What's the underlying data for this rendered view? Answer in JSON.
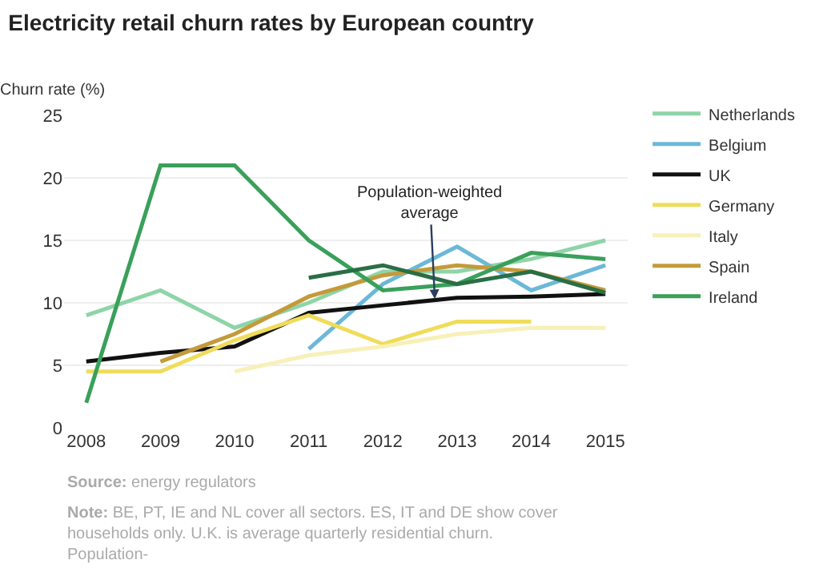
{
  "chart_data": {
    "type": "line",
    "title": "Electricity retail churn rates by European country",
    "ylabel": "Churn rate (%)",
    "x": [
      2008,
      2009,
      2010,
      2011,
      2012,
      2013,
      2014,
      2015
    ],
    "xlim": [
      2007.7,
      2015.3
    ],
    "xticks": [
      2008,
      2009,
      2010,
      2011,
      2012,
      2013,
      2014,
      2015
    ],
    "ylim": [
      0,
      25
    ],
    "yticks": [
      0,
      5,
      10,
      15,
      20,
      25
    ],
    "grid": "y",
    "legend": "right",
    "series": [
      {
        "name": "Netherlands",
        "color": "#8fd4a8",
        "values": [
          9,
          11,
          8,
          10,
          12.5,
          12.5,
          13.5,
          15
        ]
      },
      {
        "name": "Belgium",
        "color": "#6bb8d8",
        "values": [
          null,
          null,
          null,
          6.3,
          11.5,
          14.5,
          11,
          13
        ]
      },
      {
        "name": "UK",
        "color": "#111111",
        "values": [
          5.3,
          6,
          6.5,
          9.2,
          9.8,
          10.4,
          10.5,
          10.7
        ]
      },
      {
        "name": "Germany",
        "color": "#f0dc5a",
        "values": [
          4.5,
          4.5,
          7,
          9,
          6.7,
          8.5,
          8.5,
          null
        ]
      },
      {
        "name": "Italy",
        "color": "#f7f0b8",
        "values": [
          null,
          null,
          4.5,
          5.8,
          6.5,
          7.5,
          8,
          8
        ]
      },
      {
        "name": "Spain",
        "color": "#c49a3a",
        "values": [
          null,
          5.3,
          7.5,
          10.5,
          12.2,
          13,
          12.5,
          11
        ]
      },
      {
        "name": "Ireland",
        "color": "#3aa05a",
        "values": [
          2,
          21,
          21,
          15,
          11,
          11.5,
          14,
          13.5
        ]
      },
      {
        "color": "#2a6e45",
        "values": [
          null,
          null,
          null,
          12,
          13,
          11.5,
          12.5,
          10.8
        ]
      }
    ],
    "annotations": [
      {
        "text": "Population-weighted average",
        "x": 2012.7,
        "y": 10.3
      },
      "Source: energy regulators",
      "Note: BE, PT, IE and NL cover all sectors. ES, IT and DE show cover households only. U.K. is average quarterly residential churn. Population-"
    ]
  }
}
